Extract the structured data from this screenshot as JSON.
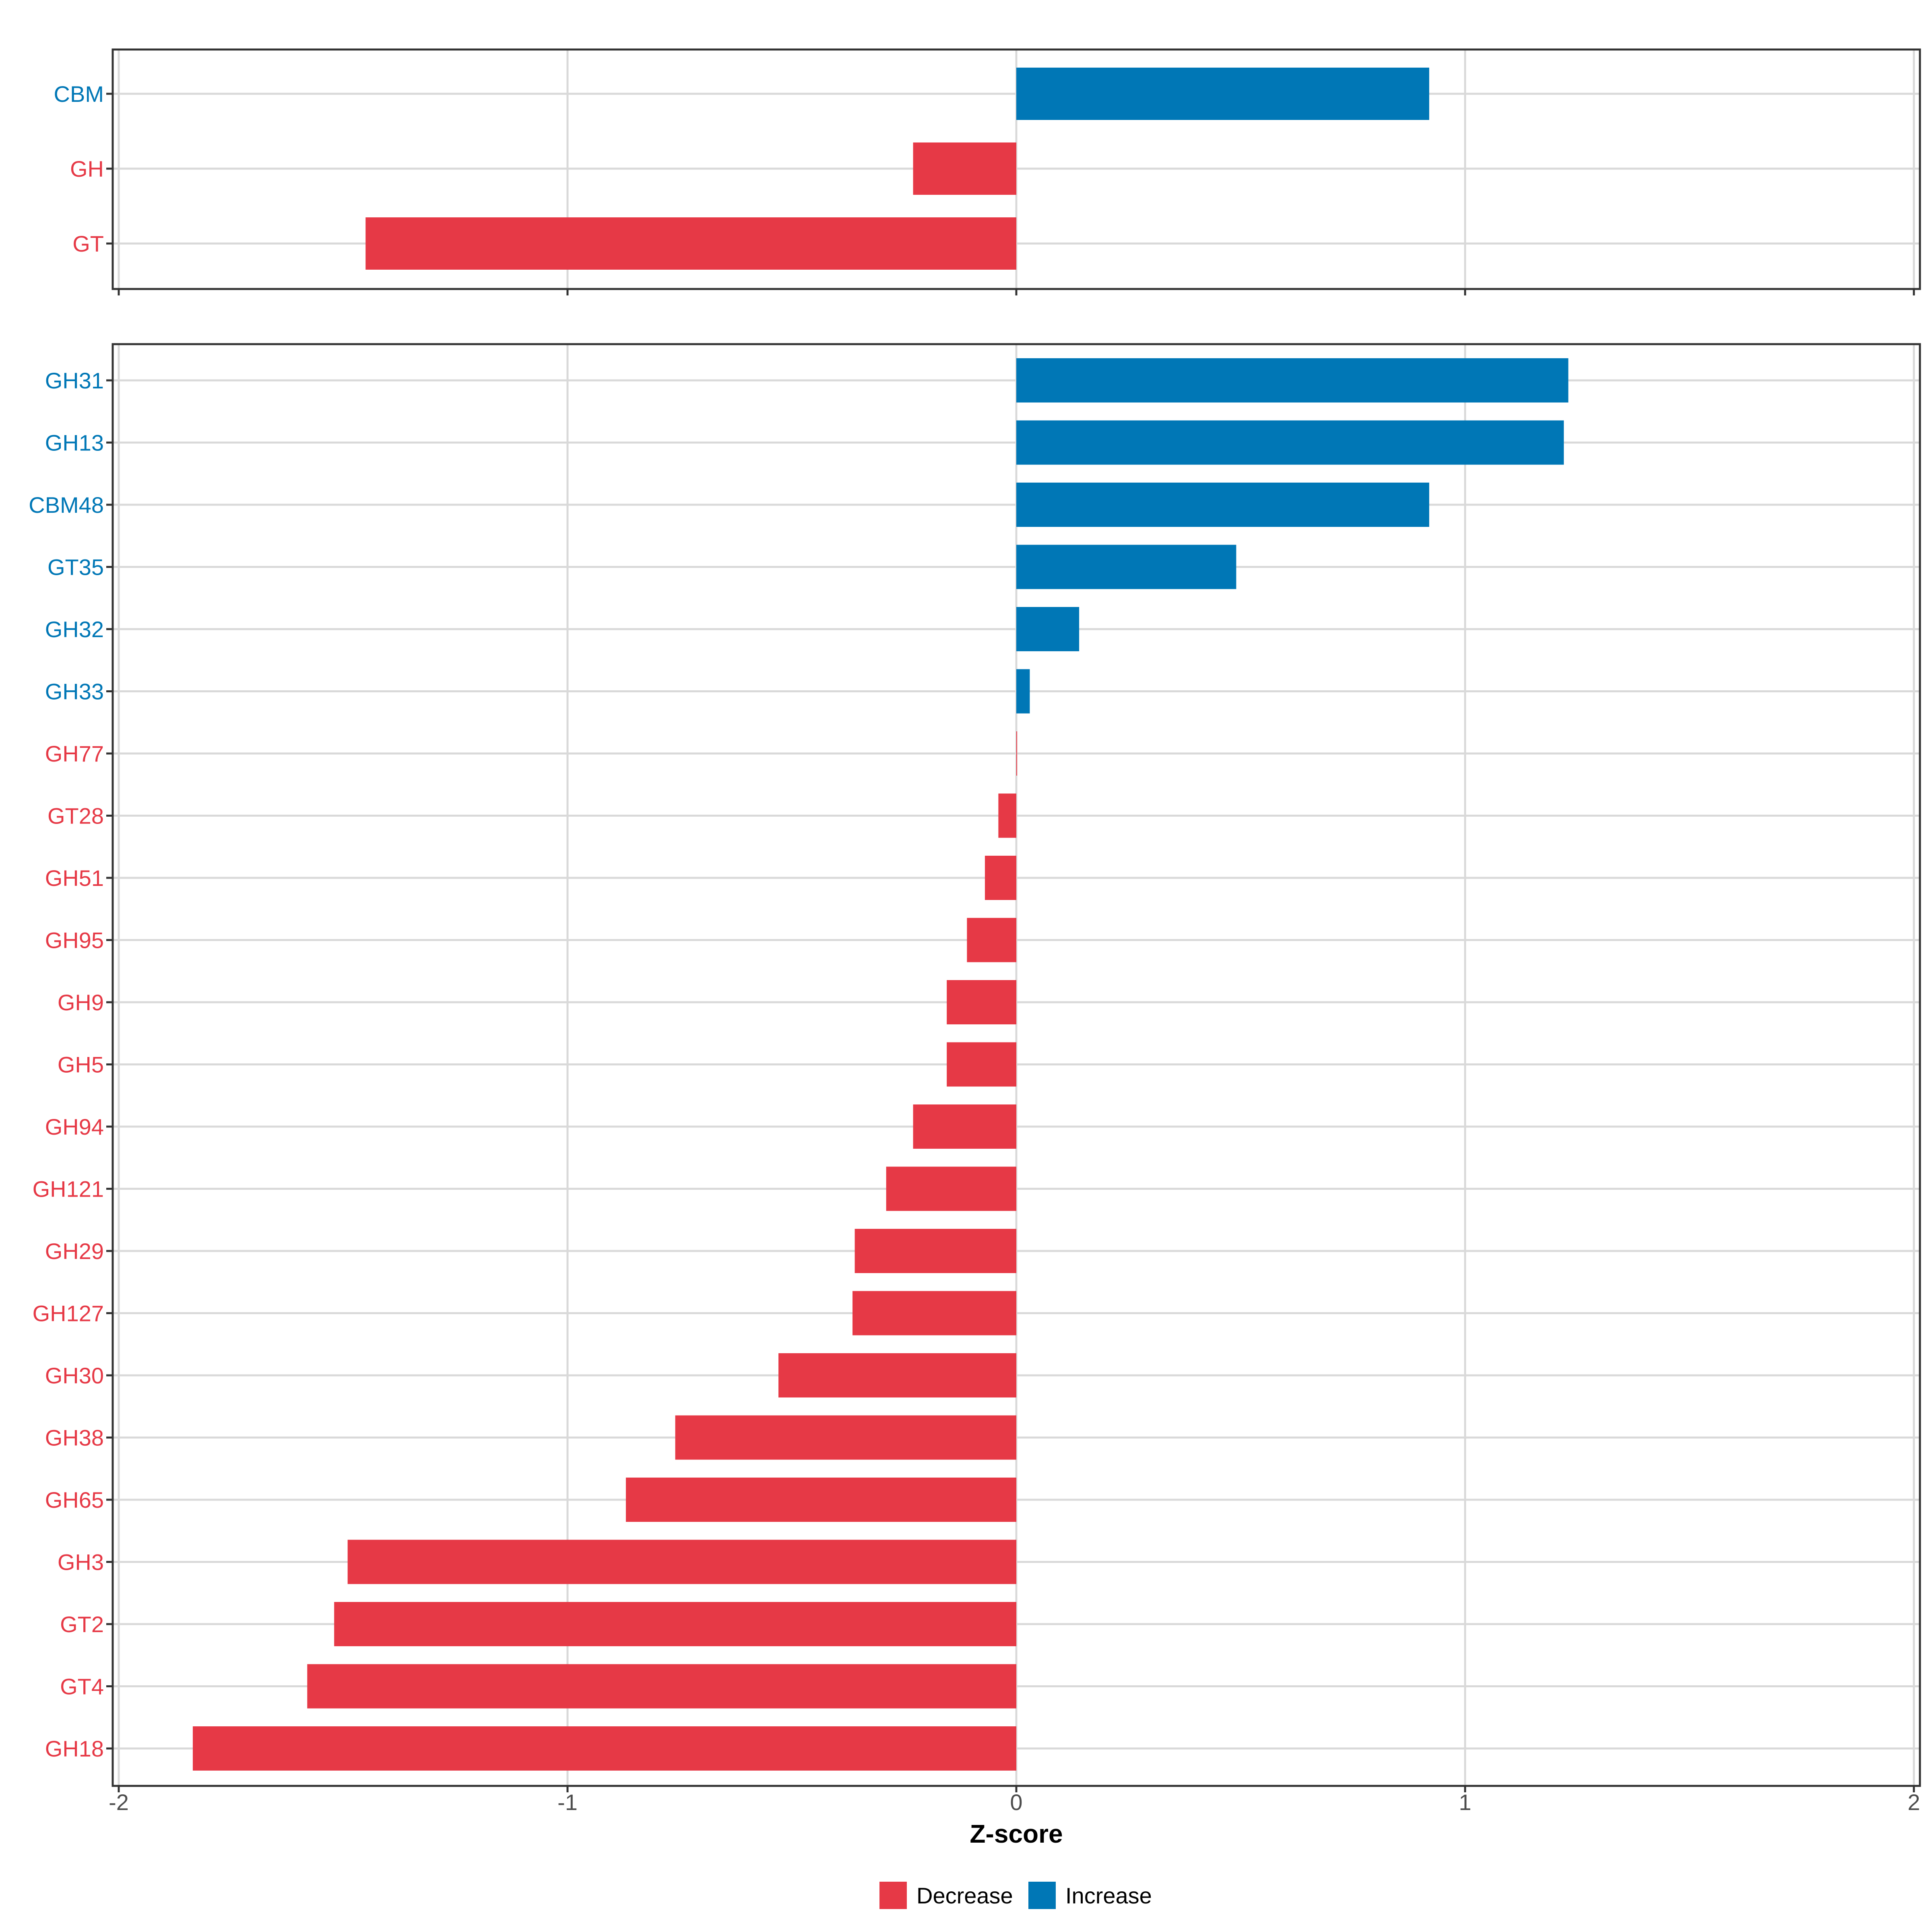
{
  "chart_data": [
    {
      "type": "bar",
      "orientation": "horizontal",
      "panel": "top",
      "categories": [
        "CBM",
        "GH",
        "GT"
      ],
      "values": [
        0.92,
        -0.23,
        -1.45
      ],
      "xlim": [
        -2,
        2
      ],
      "xticks": [
        -2,
        -1,
        0,
        1,
        2
      ],
      "grid": true
    },
    {
      "type": "bar",
      "orientation": "horizontal",
      "panel": "bottom",
      "categories": [
        "GH31",
        "GH13",
        "CBM48",
        "GT35",
        "GH32",
        "GH33",
        "GH77",
        "GT28",
        "GH51",
        "GH95",
        "GH9",
        "GH5",
        "GH94",
        "GH121",
        "GH29",
        "GH127",
        "GH30",
        "GH38",
        "GH65",
        "GH3",
        "GT2",
        "GT4",
        "GH18"
      ],
      "values": [
        1.23,
        1.22,
        0.92,
        0.49,
        0.14,
        0.03,
        0.0,
        -0.04,
        -0.07,
        -0.11,
        -0.155,
        -0.155,
        -0.23,
        -0.29,
        -0.36,
        -0.365,
        -0.53,
        -0.76,
        -0.87,
        -1.49,
        -1.52,
        -1.58,
        -1.835
      ],
      "xlim": [
        -2,
        2
      ],
      "xticks": [
        -2,
        -1,
        0,
        1,
        2
      ],
      "xlabel": "Z-score",
      "grid": true
    }
  ],
  "x_tick_labels": [
    "-2",
    "-1",
    "0",
    "1",
    "2"
  ],
  "xlabel": "Z-score",
  "legend": {
    "placement": "bottom",
    "items": [
      {
        "label": "Decrease",
        "color": "#E63946"
      },
      {
        "label": "Increase",
        "color": "#0077B6"
      }
    ]
  },
  "colors": {
    "decrease": "#E63946",
    "increase": "#0077B6",
    "grid": "#D9D9D9",
    "axis": "#333333"
  }
}
